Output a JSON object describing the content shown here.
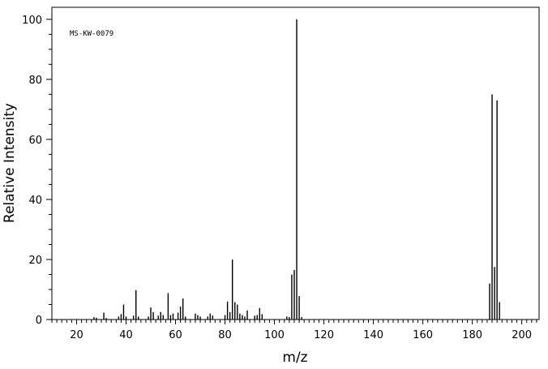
{
  "chart_data": {
    "type": "bar",
    "spectrum_id": "MS-KW-0079",
    "xlabel": "m/z",
    "ylabel": "Relative Intensity",
    "xlim": [
      10,
      207
    ],
    "ylim": [
      0,
      104
    ],
    "x_ticks": [
      20,
      40,
      60,
      80,
      100,
      120,
      140,
      160,
      180,
      200
    ],
    "y_ticks": [
      0,
      20,
      40,
      60,
      80,
      100
    ],
    "grid": false,
    "legend": "none",
    "peaks": [
      {
        "mz": 27,
        "intensity": 0.8
      },
      {
        "mz": 28,
        "intensity": 0.6
      },
      {
        "mz": 31,
        "intensity": 2.3
      },
      {
        "mz": 32,
        "intensity": 0.5
      },
      {
        "mz": 37,
        "intensity": 1.0
      },
      {
        "mz": 38,
        "intensity": 1.8
      },
      {
        "mz": 39,
        "intensity": 5.0
      },
      {
        "mz": 40,
        "intensity": 1.0
      },
      {
        "mz": 43,
        "intensity": 1.3
      },
      {
        "mz": 44,
        "intensity": 9.8
      },
      {
        "mz": 45,
        "intensity": 1.0
      },
      {
        "mz": 49,
        "intensity": 1.0
      },
      {
        "mz": 50,
        "intensity": 4.0
      },
      {
        "mz": 51,
        "intensity": 2.5
      },
      {
        "mz": 53,
        "intensity": 1.3
      },
      {
        "mz": 54,
        "intensity": 2.5
      },
      {
        "mz": 55,
        "intensity": 1.5
      },
      {
        "mz": 57,
        "intensity": 8.8
      },
      {
        "mz": 58,
        "intensity": 1.5
      },
      {
        "mz": 59,
        "intensity": 2.0
      },
      {
        "mz": 61,
        "intensity": 2.3
      },
      {
        "mz": 62,
        "intensity": 4.3
      },
      {
        "mz": 63,
        "intensity": 7.0
      },
      {
        "mz": 64,
        "intensity": 1.0
      },
      {
        "mz": 68,
        "intensity": 2.0
      },
      {
        "mz": 69,
        "intensity": 1.5
      },
      {
        "mz": 70,
        "intensity": 1.0
      },
      {
        "mz": 73,
        "intensity": 1.0
      },
      {
        "mz": 74,
        "intensity": 2.0
      },
      {
        "mz": 75,
        "intensity": 1.3
      },
      {
        "mz": 80,
        "intensity": 1.5
      },
      {
        "mz": 81,
        "intensity": 6.0
      },
      {
        "mz": 82,
        "intensity": 2.5
      },
      {
        "mz": 83,
        "intensity": 20.0
      },
      {
        "mz": 84,
        "intensity": 5.8
      },
      {
        "mz": 85,
        "intensity": 5.0
      },
      {
        "mz": 86,
        "intensity": 2.0
      },
      {
        "mz": 87,
        "intensity": 1.5
      },
      {
        "mz": 88,
        "intensity": 1.0
      },
      {
        "mz": 89,
        "intensity": 3.0
      },
      {
        "mz": 92,
        "intensity": 1.3
      },
      {
        "mz": 93,
        "intensity": 1.5
      },
      {
        "mz": 94,
        "intensity": 3.8
      },
      {
        "mz": 95,
        "intensity": 1.8
      },
      {
        "mz": 105,
        "intensity": 1.0
      },
      {
        "mz": 106,
        "intensity": 0.8
      },
      {
        "mz": 107,
        "intensity": 15.0
      },
      {
        "mz": 108,
        "intensity": 16.5
      },
      {
        "mz": 109,
        "intensity": 100.0
      },
      {
        "mz": 110,
        "intensity": 7.8
      },
      {
        "mz": 111,
        "intensity": 0.8
      },
      {
        "mz": 187,
        "intensity": 12.0
      },
      {
        "mz": 188,
        "intensity": 75.0
      },
      {
        "mz": 189,
        "intensity": 17.5
      },
      {
        "mz": 190,
        "intensity": 73.0
      },
      {
        "mz": 191,
        "intensity": 5.8
      }
    ]
  }
}
